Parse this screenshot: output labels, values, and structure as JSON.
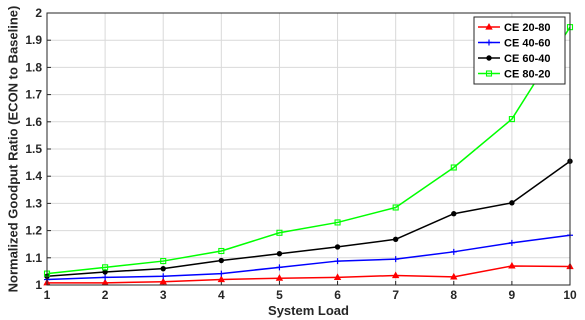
{
  "chart_data": {
    "type": "line",
    "xlabel": "System Load",
    "ylabel": "Normalized Goodput Ratio (ECON to Baseline)",
    "xlim": [
      1,
      10
    ],
    "ylim": [
      1,
      2
    ],
    "x_ticks": [
      1,
      2,
      3,
      4,
      5,
      6,
      7,
      8,
      9,
      10
    ],
    "y_ticks": [
      1,
      1.1,
      1.2,
      1.3,
      1.4,
      1.5,
      1.6,
      1.7,
      1.8,
      1.9,
      2
    ],
    "grid": true,
    "legend_position": "top-right",
    "x": [
      1,
      2,
      3,
      4,
      5,
      6,
      7,
      8,
      9,
      10
    ],
    "series": [
      {
        "name": "CE 20-80",
        "color": "#ff0000",
        "marker": "triangle",
        "values": [
          1.008,
          1.008,
          1.012,
          1.02,
          1.025,
          1.028,
          1.035,
          1.03,
          1.07,
          1.068
        ]
      },
      {
        "name": "CE 40-60",
        "color": "#0000ff",
        "marker": "plus",
        "values": [
          1.02,
          1.028,
          1.032,
          1.042,
          1.065,
          1.088,
          1.095,
          1.122,
          1.155,
          1.183
        ]
      },
      {
        "name": "CE 60-40",
        "color": "#000000",
        "marker": "circle",
        "values": [
          1.032,
          1.048,
          1.06,
          1.09,
          1.115,
          1.14,
          1.168,
          1.262,
          1.302,
          1.455
        ]
      },
      {
        "name": "CE 80-20",
        "color": "#00ff00",
        "marker": "square",
        "values": [
          1.042,
          1.065,
          1.088,
          1.125,
          1.192,
          1.23,
          1.285,
          1.432,
          1.61,
          1.948
        ]
      }
    ]
  }
}
